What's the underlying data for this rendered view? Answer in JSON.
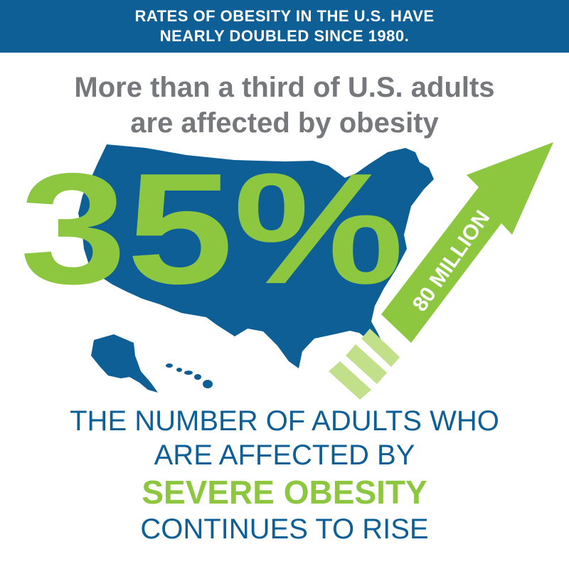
{
  "banner": {
    "line1": "RATES OF OBESITY IN THE U.S. HAVE",
    "line2": "NEARLY DOUBLED SINCE 1980."
  },
  "subhead": {
    "line1": "More than a third of U.S. adults",
    "line2": "are affected by obesity"
  },
  "big_stat": "35%",
  "arrow_label": "80 MILLION",
  "bottom": {
    "line1": "THE NUMBER OF ADULTS WHO",
    "line2": "ARE AFFECTED BY",
    "highlight": "SEVERE OBESITY",
    "line3": "CONTINUES TO RISE"
  },
  "colors": {
    "blue": "#0e5f96",
    "green": "#8dc63f",
    "light_green": "#c2e08a",
    "gray": "#77787b"
  },
  "icons": [
    "us-map-icon",
    "alaska-icon",
    "hawaii-icon",
    "rising-arrow-icon"
  ]
}
